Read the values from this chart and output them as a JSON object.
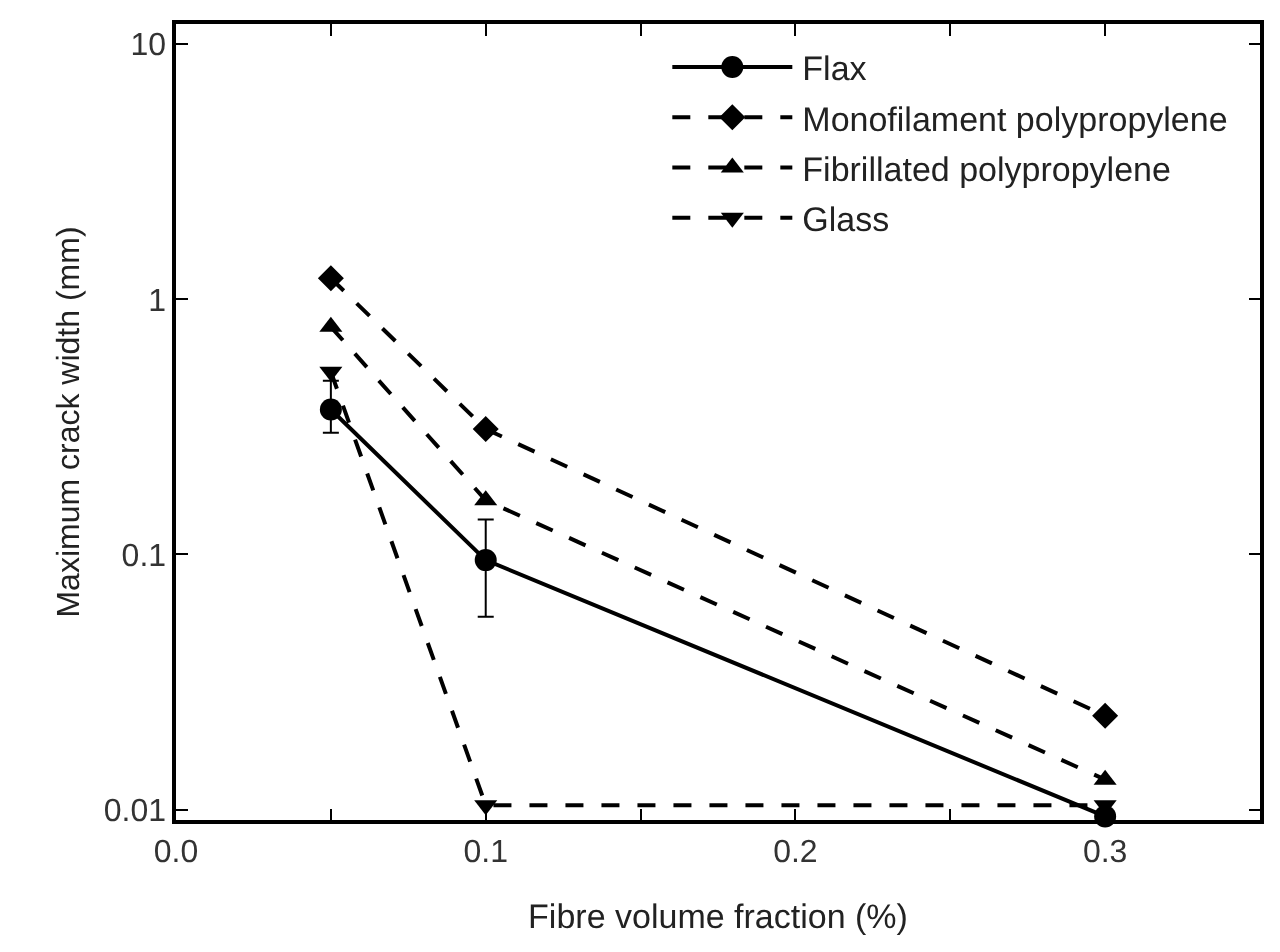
{
  "chart_data": {
    "type": "line",
    "xlabel": "Fibre volume fraction (%)",
    "ylabel": "Maximum crack width (mm)",
    "x": [
      0.05,
      0.1,
      0.3
    ],
    "series": [
      {
        "name": "Flax",
        "color": "#000000",
        "values": [
          0.37,
          0.095,
          0.0094
        ],
        "errors": [
          [
            0.3,
            0.48
          ],
          [
            0.057,
            0.137
          ],
          null
        ],
        "marker": "circle",
        "line_style": "solid"
      },
      {
        "name": "Monofilament polypropylene",
        "color": "#000000",
        "values": [
          1.21,
          0.31,
          0.0233
        ],
        "marker": "diamond",
        "line_style": "dashed"
      },
      {
        "name": "Fibrillated polypropylene",
        "color": "#000000",
        "values": [
          0.78,
          0.163,
          0.0131
        ],
        "marker": "triangle",
        "line_style": "dashed"
      },
      {
        "name": "Glass",
        "color": "#000000",
        "values": [
          0.52,
          0.0104,
          0.0104
        ],
        "marker": "triangle-down",
        "line_style": "dashed"
      }
    ],
    "xlim": [
      0.0,
      0.35
    ],
    "xticks": [
      {
        "value": 0.0,
        "label": "0.0"
      },
      {
        "value": 0.05,
        "label": null
      },
      {
        "value": 0.1,
        "label": "0.1"
      },
      {
        "value": 0.15,
        "label": null
      },
      {
        "value": 0.2,
        "label": "0.2"
      },
      {
        "value": 0.25,
        "label": null
      },
      {
        "value": 0.3,
        "label": "0.3"
      }
    ],
    "ylim": [
      0.0091,
      12
    ],
    "yticks": [
      0.01,
      0.1,
      1,
      10
    ],
    "log": "y",
    "grid": false,
    "legend": "top right"
  }
}
